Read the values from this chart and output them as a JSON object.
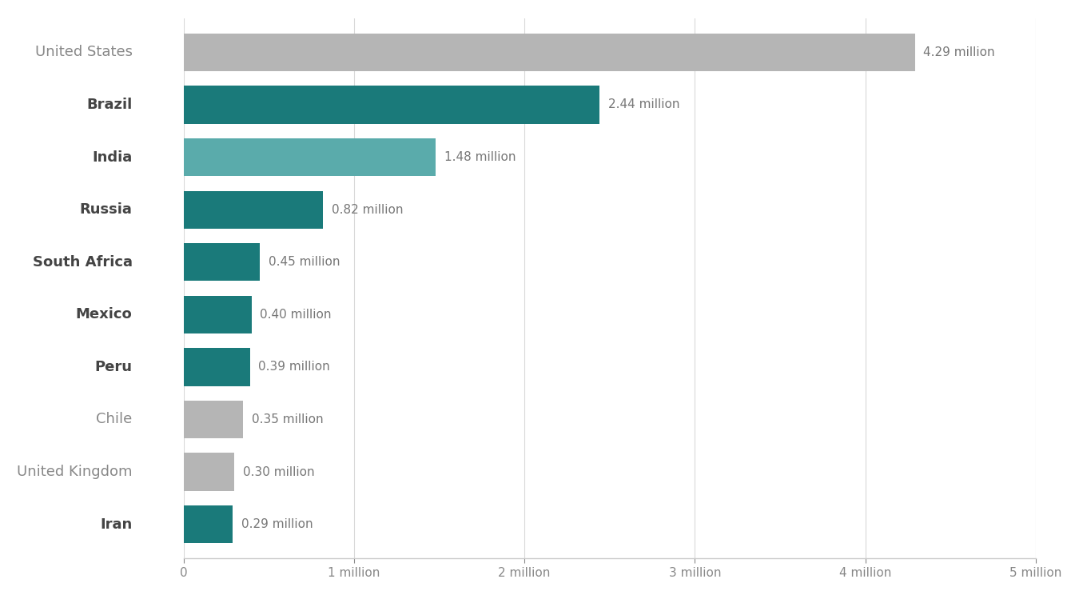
{
  "countries": [
    "United States",
    "Brazil",
    "India",
    "Russia",
    "South Africa",
    "Mexico",
    "Peru",
    "Chile",
    "United Kingdom",
    "Iran"
  ],
  "values": [
    4.29,
    2.44,
    1.48,
    0.82,
    0.45,
    0.4,
    0.39,
    0.35,
    0.3,
    0.29
  ],
  "labels": [
    "4.29 million",
    "2.44 million",
    "1.48 million",
    "0.82 million",
    "0.45 million",
    "0.40 million",
    "0.39 million",
    "0.35 million",
    "0.30 million",
    "0.29 million"
  ],
  "colors": [
    "#b5b5b5",
    "#1a7a7a",
    "#5aabab",
    "#1a7a7a",
    "#1a7a7a",
    "#1a7a7a",
    "#1a7a7a",
    "#b5b5b5",
    "#b5b5b5",
    "#1a7a7a"
  ],
  "bold_labels": [
    false,
    true,
    true,
    true,
    true,
    true,
    true,
    false,
    false,
    true
  ],
  "xlim": [
    0,
    5
  ],
  "xticks": [
    0,
    1,
    2,
    3,
    4,
    5
  ],
  "xtick_labels": [
    "0",
    "1 million",
    "2 million",
    "3 million",
    "4 million",
    "5 million"
  ],
  "background_color": "#ffffff",
  "bar_height": 0.72,
  "label_fontsize": 12,
  "tick_fontsize": 11,
  "country_fontsize": 13
}
